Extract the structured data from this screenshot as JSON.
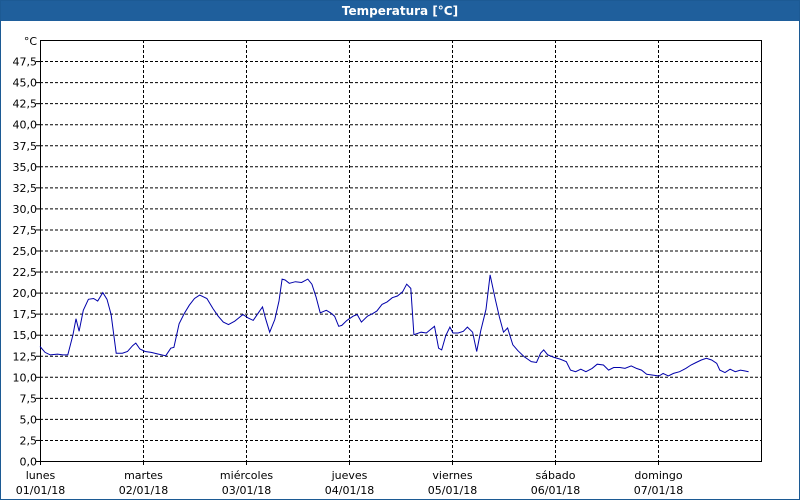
{
  "window": {
    "title": "Temperatura [°C]"
  },
  "colors": {
    "titlebar": "#1f5f9c",
    "series": "#0000aa",
    "grid": "#000000"
  },
  "chart_data": {
    "type": "line",
    "title": "Temperatura [°C]",
    "yunit": "°C",
    "ylim": [
      0,
      50
    ],
    "yticks": [
      "0,0",
      "2,5",
      "5,0",
      "7,5",
      "10,0",
      "12,5",
      "15,0",
      "17,5",
      "20,0",
      "22,5",
      "25,0",
      "27,5",
      "30,0",
      "32,5",
      "35,0",
      "37,5",
      "40,0",
      "42,5",
      "45,0",
      "47,5"
    ],
    "xlim": [
      0,
      7
    ],
    "xticks": [
      {
        "day": "lunes",
        "date": "01/01/18"
      },
      {
        "day": "martes",
        "date": "02/01/18"
      },
      {
        "day": "miércoles",
        "date": "03/01/18"
      },
      {
        "day": "jueves",
        "date": "04/01/18"
      },
      {
        "day": "viernes",
        "date": "05/01/18"
      },
      {
        "day": "sábado",
        "date": "06/01/18"
      },
      {
        "day": "domingo",
        "date": "07/01/18"
      }
    ],
    "grid": true,
    "series": [
      {
        "values": [
          [
            0.0,
            13.6
          ],
          [
            0.05,
            12.9
          ],
          [
            0.1,
            12.6
          ],
          [
            0.17,
            12.7
          ],
          [
            0.22,
            12.6
          ],
          [
            0.27,
            12.6
          ],
          [
            0.32,
            15.0
          ],
          [
            0.35,
            16.9
          ],
          [
            0.38,
            15.4
          ],
          [
            0.42,
            17.9
          ],
          [
            0.47,
            19.2
          ],
          [
            0.52,
            19.3
          ],
          [
            0.56,
            19.0
          ],
          [
            0.61,
            20.0
          ],
          [
            0.65,
            19.2
          ],
          [
            0.69,
            17.4
          ],
          [
            0.74,
            12.8
          ],
          [
            0.8,
            12.8
          ],
          [
            0.85,
            13.0
          ],
          [
            0.9,
            13.7
          ],
          [
            0.93,
            14.0
          ],
          [
            0.97,
            13.3
          ],
          [
            1.02,
            13.0
          ],
          [
            1.08,
            12.9
          ],
          [
            1.15,
            12.7
          ],
          [
            1.22,
            12.5
          ],
          [
            1.27,
            13.4
          ],
          [
            1.3,
            13.5
          ],
          [
            1.35,
            16.3
          ],
          [
            1.4,
            17.5
          ],
          [
            1.45,
            18.5
          ],
          [
            1.5,
            19.3
          ],
          [
            1.55,
            19.7
          ],
          [
            1.62,
            19.3
          ],
          [
            1.68,
            18.1
          ],
          [
            1.73,
            17.2
          ],
          [
            1.78,
            16.5
          ],
          [
            1.83,
            16.2
          ],
          [
            1.89,
            16.6
          ],
          [
            1.93,
            17.0
          ],
          [
            1.97,
            17.4
          ],
          [
            2.02,
            17.0
          ],
          [
            2.07,
            16.7
          ],
          [
            2.12,
            17.6
          ],
          [
            2.16,
            18.3
          ],
          [
            2.19,
            16.9
          ],
          [
            2.23,
            15.3
          ],
          [
            2.28,
            16.8
          ],
          [
            2.32,
            19.0
          ],
          [
            2.35,
            21.6
          ],
          [
            2.38,
            21.5
          ],
          [
            2.42,
            21.1
          ],
          [
            2.48,
            21.3
          ],
          [
            2.54,
            21.2
          ],
          [
            2.6,
            21.6
          ],
          [
            2.64,
            21.0
          ],
          [
            2.68,
            19.5
          ],
          [
            2.72,
            17.6
          ],
          [
            2.78,
            17.9
          ],
          [
            2.82,
            17.6
          ],
          [
            2.86,
            17.2
          ],
          [
            2.9,
            16.0
          ],
          [
            2.93,
            16.1
          ],
          [
            2.98,
            16.7
          ],
          [
            3.04,
            17.2
          ],
          [
            3.08,
            17.4
          ],
          [
            3.12,
            16.5
          ],
          [
            3.18,
            17.2
          ],
          [
            3.23,
            17.5
          ],
          [
            3.27,
            17.8
          ],
          [
            3.32,
            18.6
          ],
          [
            3.37,
            18.9
          ],
          [
            3.42,
            19.4
          ],
          [
            3.47,
            19.6
          ],
          [
            3.52,
            20.1
          ],
          [
            3.56,
            21.0
          ],
          [
            3.6,
            20.5
          ],
          [
            3.63,
            15.0
          ],
          [
            3.7,
            15.3
          ],
          [
            3.75,
            15.2
          ],
          [
            3.79,
            15.6
          ],
          [
            3.83,
            16.0
          ],
          [
            3.87,
            13.4
          ],
          [
            3.9,
            13.2
          ],
          [
            3.94,
            14.9
          ],
          [
            3.98,
            15.9
          ],
          [
            4.01,
            15.2
          ],
          [
            4.06,
            15.2
          ],
          [
            4.11,
            15.4
          ],
          [
            4.15,
            15.9
          ],
          [
            4.2,
            15.3
          ],
          [
            4.24,
            13.0
          ],
          [
            4.28,
            15.5
          ],
          [
            4.33,
            18.0
          ],
          [
            4.37,
            22.1
          ],
          [
            4.42,
            19.2
          ],
          [
            4.46,
            17.1
          ],
          [
            4.5,
            15.3
          ],
          [
            4.54,
            15.8
          ],
          [
            4.59,
            13.8
          ],
          [
            4.64,
            13.1
          ],
          [
            4.7,
            12.4
          ],
          [
            4.77,
            11.8
          ],
          [
            4.82,
            11.7
          ],
          [
            4.86,
            12.8
          ],
          [
            4.89,
            13.2
          ],
          [
            4.93,
            12.6
          ],
          [
            4.99,
            12.3
          ],
          [
            5.05,
            12.1
          ],
          [
            5.11,
            11.8
          ],
          [
            5.15,
            10.8
          ],
          [
            5.2,
            10.6
          ],
          [
            5.25,
            10.9
          ],
          [
            5.3,
            10.6
          ],
          [
            5.36,
            11.0
          ],
          [
            5.41,
            11.5
          ],
          [
            5.47,
            11.4
          ],
          [
            5.52,
            10.8
          ],
          [
            5.57,
            11.1
          ],
          [
            5.63,
            11.1
          ],
          [
            5.68,
            11.0
          ],
          [
            5.74,
            11.3
          ],
          [
            5.79,
            11.0
          ],
          [
            5.84,
            10.8
          ],
          [
            5.89,
            10.3
          ],
          [
            5.95,
            10.2
          ],
          [
            6.01,
            10.1
          ],
          [
            6.05,
            10.4
          ],
          [
            6.1,
            10.1
          ],
          [
            6.15,
            10.4
          ],
          [
            6.21,
            10.6
          ],
          [
            6.27,
            11.0
          ],
          [
            6.32,
            11.4
          ],
          [
            6.37,
            11.7
          ],
          [
            6.42,
            12.0
          ],
          [
            6.47,
            12.2
          ],
          [
            6.52,
            12.0
          ],
          [
            6.57,
            11.6
          ],
          [
            6.6,
            10.8
          ],
          [
            6.65,
            10.5
          ],
          [
            6.7,
            10.9
          ],
          [
            6.75,
            10.6
          ],
          [
            6.8,
            10.8
          ],
          [
            6.84,
            10.7
          ],
          [
            6.88,
            10.6
          ]
        ]
      }
    ]
  }
}
